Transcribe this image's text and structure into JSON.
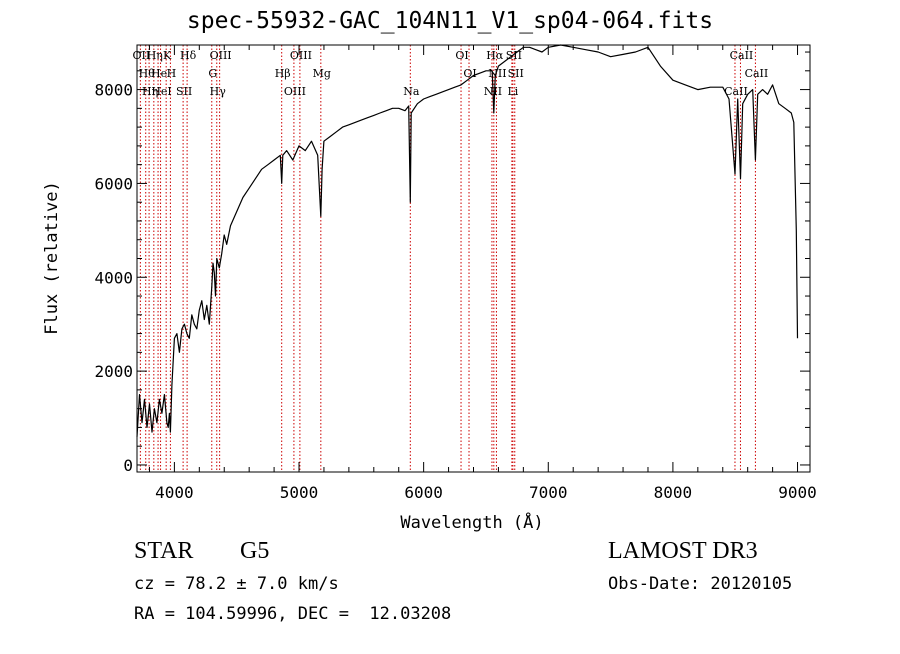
{
  "chart_data": {
    "type": "line",
    "title": "spec-55932-GAC_104N11_V1_sp04-064.fits",
    "xlabel": "Wavelength (Å)",
    "ylabel": "Flux (relative)",
    "xlim": [
      3700,
      9100
    ],
    "ylim": [
      -150,
      8950
    ],
    "xticks": [
      4000,
      5000,
      6000,
      7000,
      8000,
      9000
    ],
    "yticks": [
      0,
      2000,
      4000,
      6000,
      8000
    ],
    "grid": false,
    "series_color": "#000000",
    "line_marker_color": "#cc0000",
    "spectrum": {
      "x": [
        3700,
        3720,
        3740,
        3760,
        3780,
        3800,
        3820,
        3840,
        3860,
        3880,
        3900,
        3920,
        3940,
        3950,
        3960,
        3968,
        3980,
        4000,
        4020,
        4040,
        4060,
        4080,
        4100,
        4120,
        4140,
        4160,
        4180,
        4200,
        4220,
        4240,
        4260,
        4280,
        4300,
        4310,
        4320,
        4330,
        4340,
        4360,
        4380,
        4400,
        4420,
        4450,
        4500,
        4550,
        4600,
        4650,
        4700,
        4750,
        4800,
        4850,
        4861,
        4870,
        4900,
        4950,
        5000,
        5050,
        5100,
        5150,
        5175,
        5185,
        5200,
        5250,
        5300,
        5350,
        5400,
        5450,
        5500,
        5550,
        5600,
        5650,
        5700,
        5750,
        5800,
        5850,
        5880,
        5893,
        5900,
        5950,
        6000,
        6050,
        6100,
        6150,
        6200,
        6250,
        6300,
        6350,
        6400,
        6450,
        6500,
        6550,
        6563,
        6575,
        6600,
        6650,
        6700,
        6750,
        6800,
        6850,
        6900,
        6950,
        7000,
        7100,
        7200,
        7300,
        7400,
        7500,
        7600,
        7700,
        7800,
        7900,
        8000,
        8100,
        8200,
        8300,
        8400,
        8450,
        8498,
        8520,
        8542,
        8560,
        8600,
        8640,
        8662,
        8680,
        8720,
        8760,
        8800,
        8850,
        8900,
        8950,
        8970,
        8990,
        9000
      ],
      "y": [
        600,
        1500,
        900,
        1400,
        800,
        1300,
        700,
        1200,
        900,
        1400,
        1100,
        1500,
        900,
        800,
        1100,
        700,
        1700,
        2700,
        2800,
        2400,
        2900,
        3000,
        2800,
        2700,
        3200,
        3000,
        2900,
        3300,
        3500,
        3100,
        3400,
        3000,
        3800,
        4300,
        4100,
        3600,
        4400,
        4200,
        4500,
        4900,
        4700,
        5100,
        5400,
        5700,
        5900,
        6100,
        6300,
        6400,
        6500,
        6600,
        6000,
        6600,
        6700,
        6500,
        6800,
        6700,
        6900,
        6600,
        5300,
        6300,
        6900,
        7000,
        7100,
        7200,
        7250,
        7300,
        7350,
        7400,
        7450,
        7500,
        7550,
        7600,
        7600,
        7550,
        7650,
        5600,
        7500,
        7700,
        7800,
        7850,
        7900,
        7950,
        8000,
        8050,
        8100,
        8200,
        8300,
        8350,
        8400,
        8400,
        7500,
        8300,
        8500,
        8600,
        8700,
        8800,
        8900,
        8900,
        8850,
        8800,
        8900,
        8950,
        8900,
        8850,
        8800,
        8700,
        8750,
        8800,
        8900,
        8500,
        8200,
        8100,
        8000,
        8050,
        8050,
        7800,
        6200,
        7800,
        6100,
        7700,
        7900,
        8000,
        6500,
        7900,
        8000,
        7900,
        8100,
        7700,
        7600,
        7500,
        7300,
        5000,
        2700
      ]
    },
    "lines": [
      {
        "wl": 3727,
        "label": "OII"
      },
      {
        "wl": 3770,
        "label": "Hθ"
      },
      {
        "wl": 3797,
        "label": "Hη"
      },
      {
        "wl": 3835,
        "label": "Hη"
      },
      {
        "wl": 3869,
        "label": "He"
      },
      {
        "wl": 3889,
        "label": "HeI"
      },
      {
        "wl": 3934,
        "label": "K"
      },
      {
        "wl": 3968,
        "label": "H"
      },
      {
        "wl": 4070,
        "label": "SII"
      },
      {
        "wl": 4102,
        "label": "Hδ"
      },
      {
        "wl": 4300,
        "label": "G"
      },
      {
        "wl": 4340,
        "label": "Hγ"
      },
      {
        "wl": 4363,
        "label": "OIII"
      },
      {
        "wl": 4861,
        "label": "Hβ"
      },
      {
        "wl": 4959,
        "label": "OIII"
      },
      {
        "wl": 5007,
        "label": "OIII"
      },
      {
        "wl": 5175,
        "label": "Mg"
      },
      {
        "wl": 5893,
        "label": "Na"
      },
      {
        "wl": 6300,
        "label": "OI"
      },
      {
        "wl": 6364,
        "label": "OI"
      },
      {
        "wl": 6548,
        "label": "NII"
      },
      {
        "wl": 6563,
        "label": "Hα"
      },
      {
        "wl": 6584,
        "label": "NII"
      },
      {
        "wl": 6708,
        "label": "Li"
      },
      {
        "wl": 6716,
        "label": "SII"
      },
      {
        "wl": 6731,
        "label": "SII"
      },
      {
        "wl": 8498,
        "label": "CaII"
      },
      {
        "wl": 8542,
        "label": "CaII"
      },
      {
        "wl": 8662,
        "label": "CaII"
      }
    ]
  },
  "info": {
    "object_class": "STAR",
    "subclass": "G5",
    "survey": "LAMOST DR3",
    "cz": "cz = 78.2 ± 7.0 km/s",
    "obs_date": "Obs-Date: 20120105",
    "radec": "RA = 104.59996, DEC =  12.03208"
  }
}
